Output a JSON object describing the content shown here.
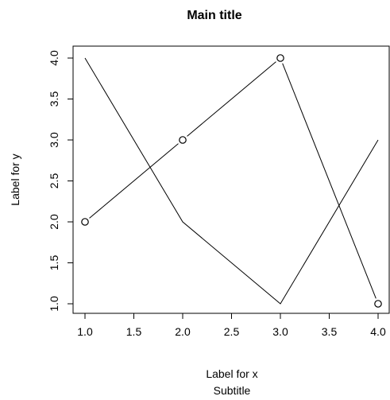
{
  "chart_data": {
    "type": "line",
    "title": "Main title",
    "subtitle": "Subtitle",
    "xlabel": "Label for x",
    "ylabel": "Label for y",
    "xlim": [
      1.0,
      4.0
    ],
    "ylim": [
      1.0,
      4.0
    ],
    "x_ticks": [
      "1.0",
      "1.5",
      "2.0",
      "2.5",
      "3.0",
      "3.5",
      "4.0"
    ],
    "y_ticks": [
      "1.0",
      "1.5",
      "2.0",
      "2.5",
      "3.0",
      "3.5",
      "4.0"
    ],
    "grid": false,
    "line_color": "#000000",
    "series": [
      {
        "x": [
          1,
          2,
          3,
          4
        ],
        "y": [
          2,
          3,
          4,
          1
        ],
        "style": "line-with-circle-markers"
      },
      {
        "x": [
          1,
          2,
          3,
          4
        ],
        "y": [
          4,
          2,
          1,
          3
        ],
        "style": "line"
      }
    ]
  }
}
